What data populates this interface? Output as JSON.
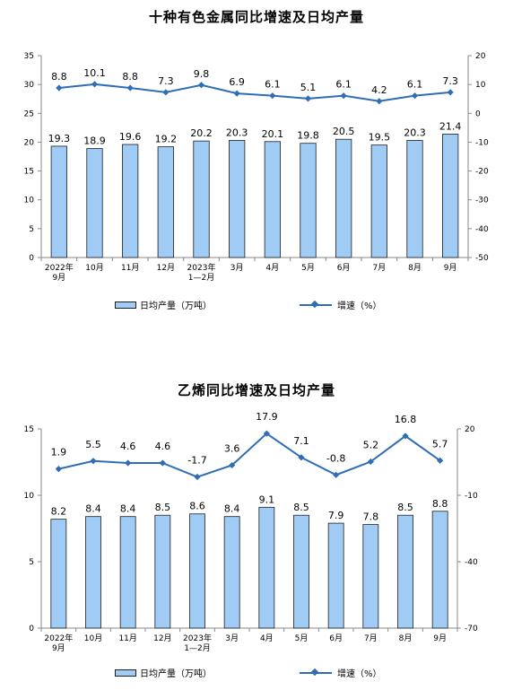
{
  "charts": [
    {
      "title": "十种有色金属同比增速及日均产量",
      "legend": {
        "bar": "日均产量（万吨）",
        "line": "增速（%）"
      },
      "chart_data": {
        "type": "bar+line",
        "categories": [
          "2022年\n9月",
          "10月",
          "11月",
          "12月",
          "2023年\n1—2月",
          "3月",
          "4月",
          "5月",
          "6月",
          "7月",
          "8月",
          "9月"
        ],
        "series": [
          {
            "name": "日均产量（万吨）",
            "type": "bar",
            "axis": "left",
            "values": [
              19.3,
              18.9,
              19.6,
              19.2,
              20.2,
              20.3,
              20.1,
              19.8,
              20.5,
              19.5,
              20.3,
              21.4
            ]
          },
          {
            "name": "增速（%）",
            "type": "line",
            "axis": "right",
            "values": [
              8.8,
              10.1,
              8.8,
              7.3,
              9.8,
              6.9,
              6.1,
              5.1,
              6.1,
              4.2,
              6.1,
              7.3
            ]
          }
        ],
        "left_axis": {
          "min": 0,
          "max": 35,
          "ticks": [
            0,
            5,
            10,
            15,
            20,
            25,
            30,
            35
          ]
        },
        "right_axis": {
          "min": -50,
          "max": 20,
          "ticks": [
            -50,
            -40,
            -30,
            -20,
            -10,
            0,
            10,
            20
          ]
        },
        "grid": false,
        "legend_position": "bottom",
        "colors": {
          "bar": "#9fcbf5",
          "bar_border": "#1f1f1f",
          "line": "#2f6db5"
        }
      }
    },
    {
      "title": "乙烯同比增速及日均产量",
      "legend": {
        "bar": "日均产量（万吨）",
        "line": "增速（%）"
      },
      "chart_data": {
        "type": "bar+line",
        "categories": [
          "2022年\n9月",
          "10月",
          "11月",
          "12月",
          "2023年\n1—2月",
          "3月",
          "4月",
          "5月",
          "6月",
          "7月",
          "8月",
          "9月"
        ],
        "series": [
          {
            "name": "日均产量（万吨）",
            "type": "bar",
            "axis": "left",
            "values": [
              8.2,
              8.4,
              8.4,
              8.5,
              8.6,
              8.4,
              9.1,
              8.5,
              7.9,
              7.8,
              8.5,
              8.8
            ]
          },
          {
            "name": "增速（%）",
            "type": "line",
            "axis": "right",
            "values": [
              1.9,
              5.5,
              4.6,
              4.6,
              -1.7,
              3.6,
              17.9,
              7.1,
              -0.8,
              5.2,
              16.8,
              5.7
            ]
          }
        ],
        "left_axis": {
          "min": 0,
          "max": 15,
          "ticks": [
            0,
            5,
            10,
            15
          ]
        },
        "right_axis": {
          "min": -70,
          "max": 20,
          "ticks": [
            -70,
            -40,
            -10,
            20
          ]
        },
        "grid": false,
        "legend_position": "bottom",
        "colors": {
          "bar": "#9fcbf5",
          "bar_border": "#1f1f1f",
          "line": "#2f6db5"
        }
      }
    }
  ]
}
